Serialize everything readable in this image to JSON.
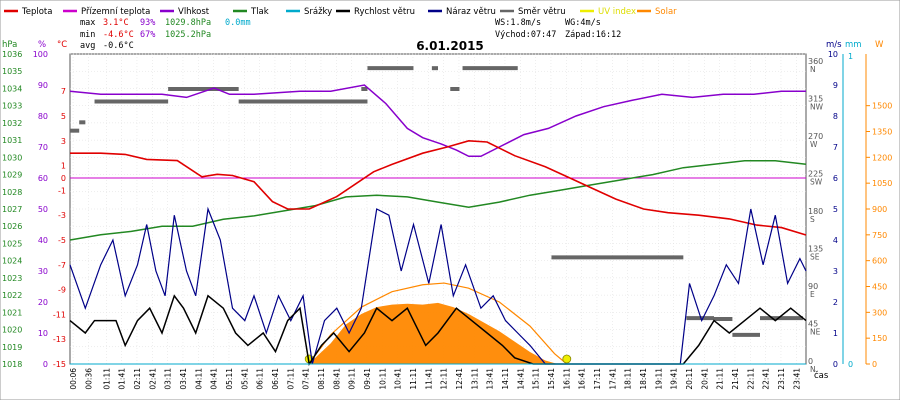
{
  "chart_data": {
    "type": "line",
    "title": "6.01.2015",
    "x_axis": {
      "label": "čas",
      "ticks": [
        "00:06",
        "00:36",
        "01:11",
        "01:41",
        "02:11",
        "02:41",
        "03:11",
        "03:41",
        "04:11",
        "04:41",
        "05:11",
        "05:41",
        "06:11",
        "06:41",
        "07:11",
        "07:41",
        "08:11",
        "08:41",
        "09:11",
        "09:41",
        "10:11",
        "10:41",
        "11:11",
        "11:41",
        "12:11",
        "12:41",
        "13:11",
        "13:41",
        "14:11",
        "14:41",
        "15:11",
        "15:41",
        "16:11",
        "16:41",
        "17:11",
        "17:41",
        "18:11",
        "18:41",
        "19:11",
        "19:41",
        "20:11",
        "20:41",
        "21:11",
        "21:41",
        "22:11",
        "22:41",
        "23:11",
        "23:41"
      ],
      "range_hours": [
        0,
        24
      ]
    },
    "legend": [
      {
        "name": "Teplota",
        "color": "#e00000"
      },
      {
        "name": "Přízemní teplota",
        "color": "#cc00cc"
      },
      {
        "name": "Vlhkost",
        "color": "#8800cc"
      },
      {
        "name": "Tlak",
        "color": "#228822"
      },
      {
        "name": "Srážky",
        "color": "#00aacc"
      },
      {
        "name": "Rychlost větru",
        "color": "#000000"
      },
      {
        "name": "Náraz větru",
        "color": "#000088"
      },
      {
        "name": "Směr větru",
        "color": "#666666"
      },
      {
        "name": "UV index",
        "color": "#eeee00"
      },
      {
        "name": "Solar",
        "color": "#ff8800"
      }
    ],
    "stats": {
      "max_label": "max",
      "max_temp": "3.1°C",
      "max_hum": "93%",
      "max_press": "1029.8hPa",
      "max_rain": "0.0mm",
      "min_label": "min",
      "min_temp": "-4.6°C",
      "min_hum": "67%",
      "min_press": "1025.2hPa",
      "avg_label": "avg",
      "avg_temp": "-0.6°C",
      "ws": "WS:1.8m/s",
      "wg": "WG:4m/s",
      "sunrise": "Východ:07:47",
      "sunset": "Západ:16:12"
    },
    "axes": {
      "hpa": {
        "label": "hPa",
        "range": [
          1018,
          1036
        ],
        "ticks": [
          "1036",
          "1035",
          "1034",
          "1033",
          "1032",
          "1031",
          "1030",
          "1029",
          "1028",
          "1027",
          "1026",
          "1025",
          "1024",
          "1023",
          "1022",
          "1021",
          "1020",
          "1019",
          "1018"
        ]
      },
      "percent": {
        "label": "%",
        "range": [
          0,
          100
        ],
        "ticks": [
          "100",
          "90",
          "80",
          "70",
          "60",
          "50",
          "40",
          "30",
          "20",
          "10",
          "0"
        ]
      },
      "celsius": {
        "label": "°C",
        "range": [
          -15,
          10
        ],
        "ticks": [
          "7",
          "5",
          "3",
          "1",
          "0",
          "-1",
          "-3",
          "-5",
          "-7",
          "-9",
          "-11",
          "-13",
          "-15"
        ]
      },
      "direction": {
        "ticks": [
          "360",
          "315",
          "270",
          "225",
          "180",
          "135",
          "90",
          "45",
          "0"
        ],
        "letters": [
          "N",
          "NW",
          "W",
          "SW",
          "S",
          "SE",
          "E",
          "NE",
          "N"
        ]
      },
      "ms": {
        "label": "m/s",
        "range": [
          0,
          10
        ],
        "ticks": [
          "10",
          "9",
          "8",
          "7",
          "6",
          "5",
          "4",
          "3",
          "2",
          "1",
          "0"
        ]
      },
      "mm": {
        "label": "mm",
        "ticks": [
          "1",
          "0"
        ]
      },
      "w": {
        "label": "W",
        "range": [
          0,
          1800
        ],
        "ticks": [
          "1500",
          "1350",
          "1200",
          "1050",
          "900",
          "750",
          "600",
          "450",
          "300",
          "150",
          "0"
        ]
      }
    },
    "series": [
      {
        "name": "Teplota",
        "unit": "°C",
        "color": "#e00000",
        "points": [
          [
            0,
            2.0
          ],
          [
            1,
            2.0
          ],
          [
            1.8,
            1.9
          ],
          [
            2.5,
            1.5
          ],
          [
            3.5,
            1.4
          ],
          [
            4.3,
            0.1
          ],
          [
            4.8,
            0.3
          ],
          [
            5.3,
            0.2
          ],
          [
            6.0,
            -0.3
          ],
          [
            6.6,
            -1.9
          ],
          [
            7.1,
            -2.5
          ],
          [
            7.8,
            -2.5
          ],
          [
            8.7,
            -1.5
          ],
          [
            9.3,
            -0.5
          ],
          [
            9.9,
            0.5
          ],
          [
            10.5,
            1.1
          ],
          [
            11.5,
            2.0
          ],
          [
            12.3,
            2.5
          ],
          [
            13.0,
            3.0
          ],
          [
            13.6,
            2.9
          ],
          [
            14.5,
            1.8
          ],
          [
            15.5,
            0.9
          ],
          [
            16.3,
            0.0
          ],
          [
            17.0,
            -0.8
          ],
          [
            17.8,
            -1.7
          ],
          [
            18.7,
            -2.5
          ],
          [
            19.5,
            -2.8
          ],
          [
            20.5,
            -3.0
          ],
          [
            21.5,
            -3.3
          ],
          [
            22.4,
            -3.8
          ],
          [
            23.2,
            -4.0
          ],
          [
            24.0,
            -4.6
          ]
        ]
      },
      {
        "name": "Přízemní teplota",
        "unit": "°C",
        "color": "#cc00cc",
        "points": [
          [
            0,
            0.0
          ],
          [
            24,
            0.0
          ]
        ]
      },
      {
        "name": "Vlhkost",
        "unit": "%",
        "color": "#8800cc",
        "points": [
          [
            0,
            88
          ],
          [
            1,
            87
          ],
          [
            2,
            87
          ],
          [
            3,
            87
          ],
          [
            3.8,
            86
          ],
          [
            4.7,
            89
          ],
          [
            5.2,
            87
          ],
          [
            6,
            87
          ],
          [
            7.5,
            88
          ],
          [
            8.5,
            88
          ],
          [
            9.6,
            90
          ],
          [
            10.3,
            84
          ],
          [
            11,
            76
          ],
          [
            11.5,
            73
          ],
          [
            12.1,
            71
          ],
          [
            12.6,
            69
          ],
          [
            13.0,
            67
          ],
          [
            13.4,
            67
          ],
          [
            14,
            70
          ],
          [
            14.8,
            74
          ],
          [
            15.6,
            76
          ],
          [
            16.5,
            80
          ],
          [
            17.4,
            83
          ],
          [
            18.3,
            85
          ],
          [
            19.3,
            87
          ],
          [
            20.3,
            86
          ],
          [
            21.3,
            87
          ],
          [
            22.3,
            87
          ],
          [
            23.2,
            88
          ],
          [
            24,
            88
          ]
        ]
      },
      {
        "name": "Tlak",
        "unit": "hPa",
        "color": "#228822",
        "points": [
          [
            0,
            1025.2
          ],
          [
            1,
            1025.5
          ],
          [
            2,
            1025.7
          ],
          [
            3,
            1026.0
          ],
          [
            4,
            1026.0
          ],
          [
            5,
            1026.4
          ],
          [
            6,
            1026.6
          ],
          [
            7,
            1026.9
          ],
          [
            8,
            1027.2
          ],
          [
            9,
            1027.7
          ],
          [
            10,
            1027.8
          ],
          [
            11,
            1027.7
          ],
          [
            12,
            1027.4
          ],
          [
            13,
            1027.1
          ],
          [
            14,
            1027.4
          ],
          [
            15,
            1027.8
          ],
          [
            16,
            1028.1
          ],
          [
            17,
            1028.4
          ],
          [
            18,
            1028.7
          ],
          [
            19,
            1029.0
          ],
          [
            20,
            1029.4
          ],
          [
            21,
            1029.6
          ],
          [
            22,
            1029.8
          ],
          [
            23,
            1029.8
          ],
          [
            24,
            1029.6
          ]
        ]
      },
      {
        "name": "Srážky",
        "unit": "mm",
        "color": "#00aacc",
        "points": [
          [
            0,
            0
          ],
          [
            24,
            0
          ]
        ]
      },
      {
        "name": "Rychlost větru",
        "unit": "m/s",
        "color": "#000000",
        "points": [
          [
            0,
            1.4
          ],
          [
            0.5,
            1
          ],
          [
            0.8,
            1.4
          ],
          [
            1.5,
            1.4
          ],
          [
            1.8,
            0.6
          ],
          [
            2.2,
            1.4
          ],
          [
            2.6,
            1.8
          ],
          [
            3.0,
            1.0
          ],
          [
            3.4,
            2.2
          ],
          [
            3.7,
            1.8
          ],
          [
            4.1,
            1.0
          ],
          [
            4.5,
            2.2
          ],
          [
            5.0,
            1.8
          ],
          [
            5.4,
            1.0
          ],
          [
            5.8,
            0.6
          ],
          [
            6.3,
            1.0
          ],
          [
            6.7,
            0.4
          ],
          [
            7.1,
            1.4
          ],
          [
            7.5,
            1.8
          ],
          [
            7.8,
            0
          ],
          [
            8.2,
            0.6
          ],
          [
            8.6,
            1.0
          ],
          [
            9.1,
            0.4
          ],
          [
            9.6,
            1.0
          ],
          [
            10.0,
            1.8
          ],
          [
            10.5,
            1.4
          ],
          [
            11.0,
            1.8
          ],
          [
            11.6,
            0.6
          ],
          [
            12.0,
            1.0
          ],
          [
            12.6,
            1.8
          ],
          [
            13.1,
            1.4
          ],
          [
            13.6,
            1.0
          ],
          [
            14.1,
            0.6
          ],
          [
            14.5,
            0.2
          ],
          [
            15.1,
            0
          ],
          [
            15.9,
            0
          ],
          [
            16.3,
            0
          ],
          [
            20.0,
            0
          ],
          [
            20.5,
            0.6
          ],
          [
            21.0,
            1.4
          ],
          [
            21.5,
            1.0
          ],
          [
            22.0,
            1.4
          ],
          [
            22.5,
            1.8
          ],
          [
            23.0,
            1.4
          ],
          [
            23.5,
            1.8
          ],
          [
            24,
            1.4
          ]
        ]
      },
      {
        "name": "Náraz větru",
        "unit": "m/s",
        "color": "#000088",
        "points": [
          [
            0,
            3.2
          ],
          [
            0.5,
            1.8
          ],
          [
            1.0,
            3.2
          ],
          [
            1.4,
            4.0
          ],
          [
            1.8,
            2.2
          ],
          [
            2.2,
            3.2
          ],
          [
            2.5,
            4.5
          ],
          [
            2.8,
            3.0
          ],
          [
            3.1,
            2.2
          ],
          [
            3.4,
            4.8
          ],
          [
            3.8,
            3.0
          ],
          [
            4.1,
            2.2
          ],
          [
            4.5,
            5.0
          ],
          [
            4.9,
            4.0
          ],
          [
            5.3,
            1.8
          ],
          [
            5.7,
            1.4
          ],
          [
            6.0,
            2.2
          ],
          [
            6.4,
            1.0
          ],
          [
            6.8,
            2.2
          ],
          [
            7.2,
            1.4
          ],
          [
            7.6,
            2.2
          ],
          [
            7.9,
            0
          ],
          [
            8.3,
            1.4
          ],
          [
            8.7,
            1.8
          ],
          [
            9.1,
            1.0
          ],
          [
            9.5,
            1.8
          ],
          [
            10.0,
            5.0
          ],
          [
            10.4,
            4.8
          ],
          [
            10.8,
            3.0
          ],
          [
            11.2,
            4.5
          ],
          [
            11.7,
            2.6
          ],
          [
            12.1,
            4.5
          ],
          [
            12.5,
            2.2
          ],
          [
            12.9,
            3.2
          ],
          [
            13.4,
            1.8
          ],
          [
            13.8,
            2.2
          ],
          [
            14.2,
            1.4
          ],
          [
            14.6,
            1.0
          ],
          [
            15.0,
            0.6
          ],
          [
            15.5,
            0
          ],
          [
            16.3,
            0
          ],
          [
            19.9,
            0
          ],
          [
            20.2,
            2.6
          ],
          [
            20.6,
            1.4
          ],
          [
            21.0,
            2.2
          ],
          [
            21.4,
            3.2
          ],
          [
            21.8,
            2.6
          ],
          [
            22.2,
            5.0
          ],
          [
            22.6,
            3.2
          ],
          [
            23.0,
            4.8
          ],
          [
            23.4,
            2.6
          ],
          [
            23.8,
            3.4
          ],
          [
            24,
            3.0
          ]
        ]
      },
      {
        "name": "Směr větru",
        "unit": "°",
        "color": "#666666",
        "segments": [
          [
            0,
            0.3,
            280
          ],
          [
            0.3,
            0.5,
            290
          ],
          [
            0.8,
            3.2,
            315
          ],
          [
            3.2,
            5.5,
            330
          ],
          [
            5.5,
            9.7,
            315
          ],
          [
            9.5,
            9.7,
            330
          ],
          [
            9.7,
            11.2,
            355
          ],
          [
            11.8,
            12.0,
            355
          ],
          [
            12.4,
            12.7,
            330
          ],
          [
            12.8,
            14.6,
            355
          ],
          [
            15.7,
            20.0,
            128
          ],
          [
            20.1,
            21.0,
            55
          ],
          [
            21.0,
            21.6,
            54
          ],
          [
            21.6,
            22.5,
            35
          ],
          [
            22.5,
            23.9,
            55
          ]
        ]
      },
      {
        "name": "UV index",
        "unit": "",
        "color": "#eeee00",
        "points": [
          [
            7.8,
            0
          ],
          [
            16.2,
            0
          ]
        ]
      },
      {
        "name": "Solar",
        "unit": "W/m²",
        "color": "#ff8800",
        "area_points": [
          [
            7.78,
            0
          ],
          [
            8.5,
            120
          ],
          [
            9.0,
            230
          ],
          [
            9.5,
            290
          ],
          [
            10.0,
            330
          ],
          [
            10.5,
            345
          ],
          [
            11.0,
            350
          ],
          [
            11.5,
            345
          ],
          [
            12.0,
            355
          ],
          [
            12.5,
            330
          ],
          [
            13.0,
            290
          ],
          [
            13.5,
            240
          ],
          [
            14.0,
            190
          ],
          [
            14.5,
            130
          ],
          [
            15.0,
            70
          ],
          [
            15.5,
            20
          ],
          [
            15.9,
            0
          ]
        ],
        "clear_sky_points": [
          [
            7.78,
            0
          ],
          [
            8.5,
            170
          ],
          [
            9.5,
            330
          ],
          [
            10.5,
            420
          ],
          [
            11.5,
            460
          ],
          [
            12.2,
            470
          ],
          [
            13.0,
            440
          ],
          [
            14.0,
            360
          ],
          [
            15.0,
            220
          ],
          [
            15.8,
            60
          ],
          [
            16.2,
            0
          ]
        ]
      }
    ]
  }
}
